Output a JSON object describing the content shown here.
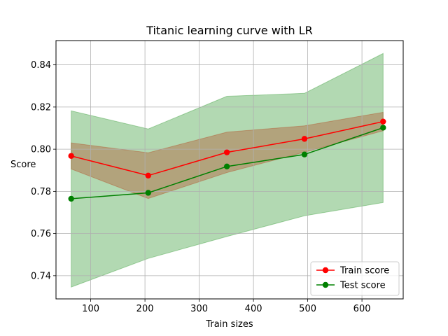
{
  "chart_data": {
    "type": "line",
    "title": "Titanic learning curve with LR",
    "xlabel": "Train sizes",
    "ylabel": "Score",
    "xlim": [
      36,
      676
    ],
    "ylim": [
      0.729,
      0.8515
    ],
    "grid": true,
    "legend_position": "bottom-right",
    "x": [
      64,
      206,
      351,
      494,
      639
    ],
    "xticks": [
      100,
      200,
      300,
      400,
      500,
      600
    ],
    "yticks": [
      0.74,
      0.76,
      0.78,
      0.8,
      0.82,
      0.84
    ],
    "series": [
      {
        "name": "Train score",
        "color": "#ff0000",
        "band_color": "#ff0000",
        "values": [
          0.7968,
          0.7875,
          0.7985,
          0.8049,
          0.8131
        ],
        "band_lower": [
          0.7906,
          0.7766,
          0.7889,
          0.7986,
          0.8087
        ],
        "band_upper": [
          0.803,
          0.7983,
          0.8081,
          0.8111,
          0.8175
        ]
      },
      {
        "name": "Test score",
        "color": "#008000",
        "band_color": "#008000",
        "values": [
          0.7765,
          0.7793,
          0.7918,
          0.7975,
          0.8102
        ],
        "band_lower": [
          0.7346,
          0.7482,
          0.7586,
          0.7684,
          0.7747
        ],
        "band_upper": [
          0.8182,
          0.8096,
          0.8251,
          0.8265,
          0.8454
        ]
      }
    ]
  }
}
